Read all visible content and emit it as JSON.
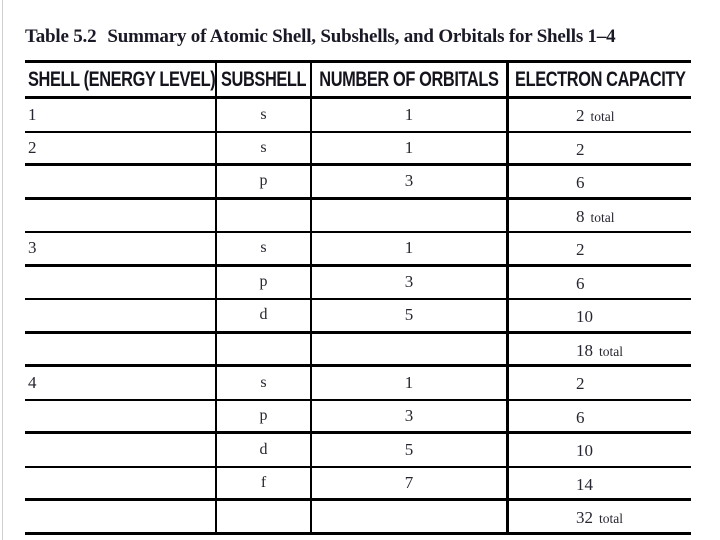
{
  "title": {
    "label": "Table 5.2",
    "text": "Summary of Atomic Shell, Subshells, and Orbitals for Shells 1–4"
  },
  "table": {
    "columns": [
      "SHELL (ENERGY LEVEL)",
      "SUBSHELL",
      "NUMBER OF ORBITALS",
      "ELECTRON CAPACITY"
    ],
    "rows": [
      {
        "shell": "1",
        "subshell": "s",
        "orbitals": "1",
        "capacity": "2",
        "note": "total"
      },
      {
        "shell": "2",
        "subshell": "s",
        "orbitals": "1",
        "capacity": "2",
        "note": ""
      },
      {
        "shell": "",
        "subshell": "p",
        "orbitals": "3",
        "capacity": "6",
        "note": ""
      },
      {
        "shell": "",
        "subshell": "",
        "orbitals": "",
        "capacity": "8",
        "note": "total"
      },
      {
        "shell": "3",
        "subshell": "s",
        "orbitals": "1",
        "capacity": "2",
        "note": ""
      },
      {
        "shell": "",
        "subshell": "p",
        "orbitals": "3",
        "capacity": "6",
        "note": ""
      },
      {
        "shell": "",
        "subshell": "d",
        "orbitals": "5",
        "capacity": "10",
        "note": ""
      },
      {
        "shell": "",
        "subshell": "",
        "orbitals": "",
        "capacity": "18",
        "note": "total"
      },
      {
        "shell": "4",
        "subshell": "s",
        "orbitals": "1",
        "capacity": "2",
        "note": ""
      },
      {
        "shell": "",
        "subshell": "p",
        "orbitals": "3",
        "capacity": "6",
        "note": ""
      },
      {
        "shell": "",
        "subshell": "d",
        "orbitals": "5",
        "capacity": "10",
        "note": ""
      },
      {
        "shell": "",
        "subshell": "f",
        "orbitals": "7",
        "capacity": "14",
        "note": ""
      },
      {
        "shell": "",
        "subshell": "",
        "orbitals": "",
        "capacity": "32",
        "note": "total"
      }
    ]
  },
  "colors": {
    "rule": "#000000",
    "title_text": "#1a1a26",
    "header_text": "#14141d",
    "body_text": "#262630",
    "page_edge": "#cfcfcf",
    "background": "#ffffff"
  }
}
